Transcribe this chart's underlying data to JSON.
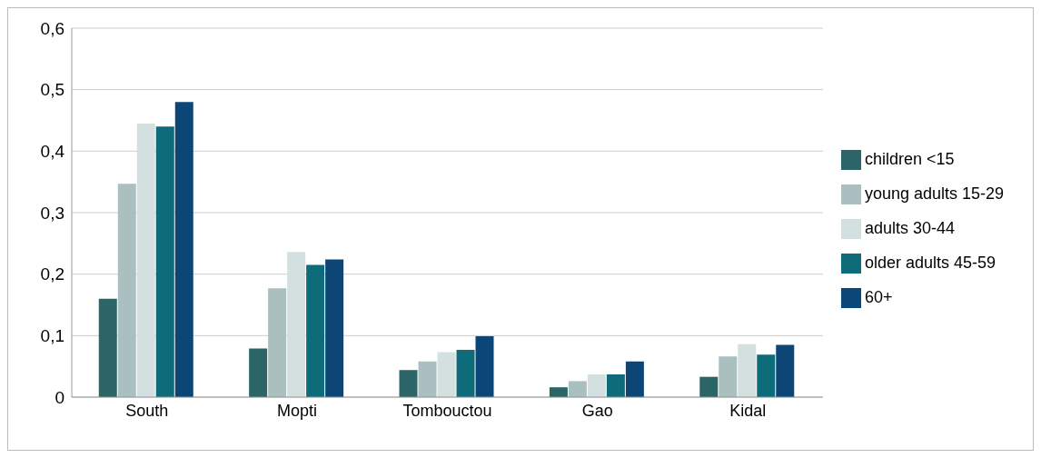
{
  "chart_data": {
    "type": "bar",
    "categories": [
      "South",
      "Mopti",
      "Tombouctou",
      "Gao",
      "Kidal"
    ],
    "series": [
      {
        "name": "children <15",
        "color": "#2b6567",
        "values": [
          0.16,
          0.079,
          0.044,
          0.016,
          0.033
        ]
      },
      {
        "name": "young adults 15-29",
        "color": "#a9bfc0",
        "values": [
          0.347,
          0.177,
          0.058,
          0.026,
          0.066
        ]
      },
      {
        "name": "adults 30-44",
        "color": "#d4e0e0",
        "values": [
          0.445,
          0.236,
          0.073,
          0.037,
          0.086
        ]
      },
      {
        "name": "older adults 45-59",
        "color": "#0e6b7a",
        "values": [
          0.44,
          0.215,
          0.077,
          0.037,
          0.069
        ]
      },
      {
        "name": "60+",
        "color": "#0b4676",
        "values": [
          0.48,
          0.224,
          0.099,
          0.058,
          0.085
        ]
      }
    ],
    "ylim": [
      0,
      0.6
    ],
    "yticks": [
      {
        "value": 0,
        "label": "0"
      },
      {
        "value": 0.1,
        "label": "0,1"
      },
      {
        "value": 0.2,
        "label": "0,2"
      },
      {
        "value": 0.3,
        "label": "0,3"
      },
      {
        "value": 0.4,
        "label": "0,4"
      },
      {
        "value": 0.5,
        "label": "0,5"
      },
      {
        "value": 0.6,
        "label": "0,6"
      }
    ],
    "grid": "y",
    "legend": "right"
  }
}
